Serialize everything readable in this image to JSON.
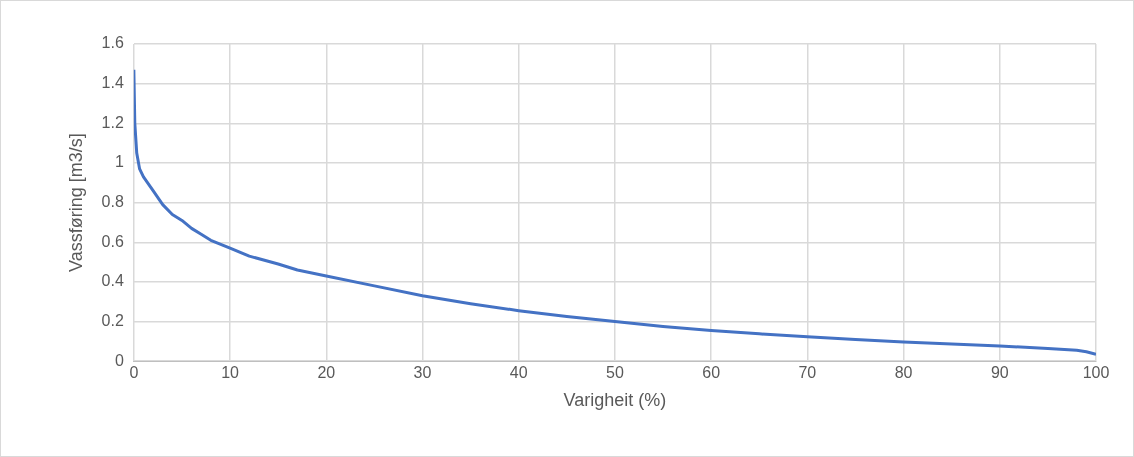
{
  "chart_data": {
    "type": "line",
    "xlabel": "Varigheit (%)",
    "ylabel": "Vassføring [m3/s]",
    "series": [
      {
        "color": "#4472c4",
        "x": [
          0,
          0.1,
          0.3,
          0.6,
          1,
          2,
          3,
          4,
          5,
          6,
          7,
          8,
          10,
          12,
          15,
          17,
          20,
          25,
          30,
          35,
          40,
          45,
          50,
          55,
          60,
          65,
          70,
          75,
          80,
          85,
          90,
          95,
          98,
          99,
          100
        ],
        "values": [
          1.47,
          1.2,
          1.05,
          0.97,
          0.93,
          0.86,
          0.79,
          0.74,
          0.71,
          0.67,
          0.64,
          0.61,
          0.57,
          0.53,
          0.49,
          0.46,
          0.43,
          0.38,
          0.33,
          0.29,
          0.255,
          0.225,
          0.2,
          0.175,
          0.155,
          0.138,
          0.123,
          0.11,
          0.097,
          0.087,
          0.077,
          0.064,
          0.055,
          0.048,
          0.035
        ]
      }
    ],
    "xlim": [
      0,
      100
    ],
    "xticks": [
      0,
      10,
      20,
      30,
      40,
      50,
      60,
      70,
      80,
      90,
      100
    ],
    "ylim": [
      0,
      1.6
    ],
    "yticks": [
      0,
      0.2,
      0.4,
      0.6,
      0.8,
      1,
      1.2,
      1.4,
      1.6
    ],
    "grid": true,
    "legend": false,
    "marker": "none",
    "line_style": "solid"
  }
}
